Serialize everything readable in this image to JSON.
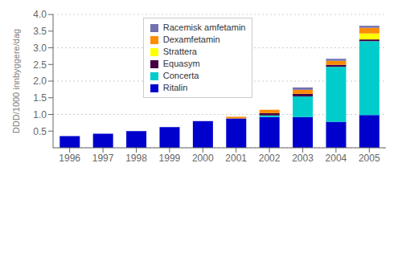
{
  "chart_data": {
    "type": "bar",
    "stacked": true,
    "categories": [
      "1996",
      "1997",
      "1998",
      "1999",
      "2000",
      "2001",
      "2002",
      "2003",
      "2004",
      "2005"
    ],
    "series": [
      {
        "name": "Ritalin",
        "color": "#0000CC",
        "values": [
          0.35,
          0.42,
          0.5,
          0.62,
          0.8,
          0.88,
          0.92,
          0.92,
          0.78,
          0.98
        ]
      },
      {
        "name": "Concerta",
        "color": "#00CCCC",
        "values": [
          0.0,
          0.0,
          0.0,
          0.0,
          0.0,
          0.0,
          0.05,
          0.62,
          1.65,
          2.22
        ]
      },
      {
        "name": "Equasym",
        "color": "#440044",
        "values": [
          0.0,
          0.0,
          0.0,
          0.0,
          0.0,
          0.0,
          0.07,
          0.08,
          0.06,
          0.05
        ]
      },
      {
        "name": "Strattera",
        "color": "#FFFF00",
        "values": [
          0.0,
          0.0,
          0.0,
          0.0,
          0.0,
          0.0,
          0.0,
          0.0,
          0.0,
          0.18
        ]
      },
      {
        "name": "Dexamfetamin",
        "color": "#FF8C00",
        "values": [
          0.0,
          0.0,
          0.0,
          0.0,
          0.0,
          0.05,
          0.1,
          0.12,
          0.12,
          0.17
        ]
      },
      {
        "name": "Racemisk amfetamin",
        "color": "#7070B0",
        "values": [
          0.0,
          0.0,
          0.0,
          0.0,
          0.0,
          0.0,
          0.0,
          0.07,
          0.06,
          0.06
        ]
      }
    ],
    "ylabel": "DDD/1000 innbyggere/dag",
    "ylim": [
      0,
      4
    ],
    "yticks": [
      0.5,
      {
        "value": 1,
        "label": "1.0"
      },
      1.5,
      {
        "value": 2,
        "label": "2.0"
      },
      2.5,
      {
        "value": 3,
        "label": "3.0"
      },
      3.5,
      {
        "value": 4,
        "label": "4.0"
      }
    ],
    "grid": true,
    "legend": "upper left"
  }
}
